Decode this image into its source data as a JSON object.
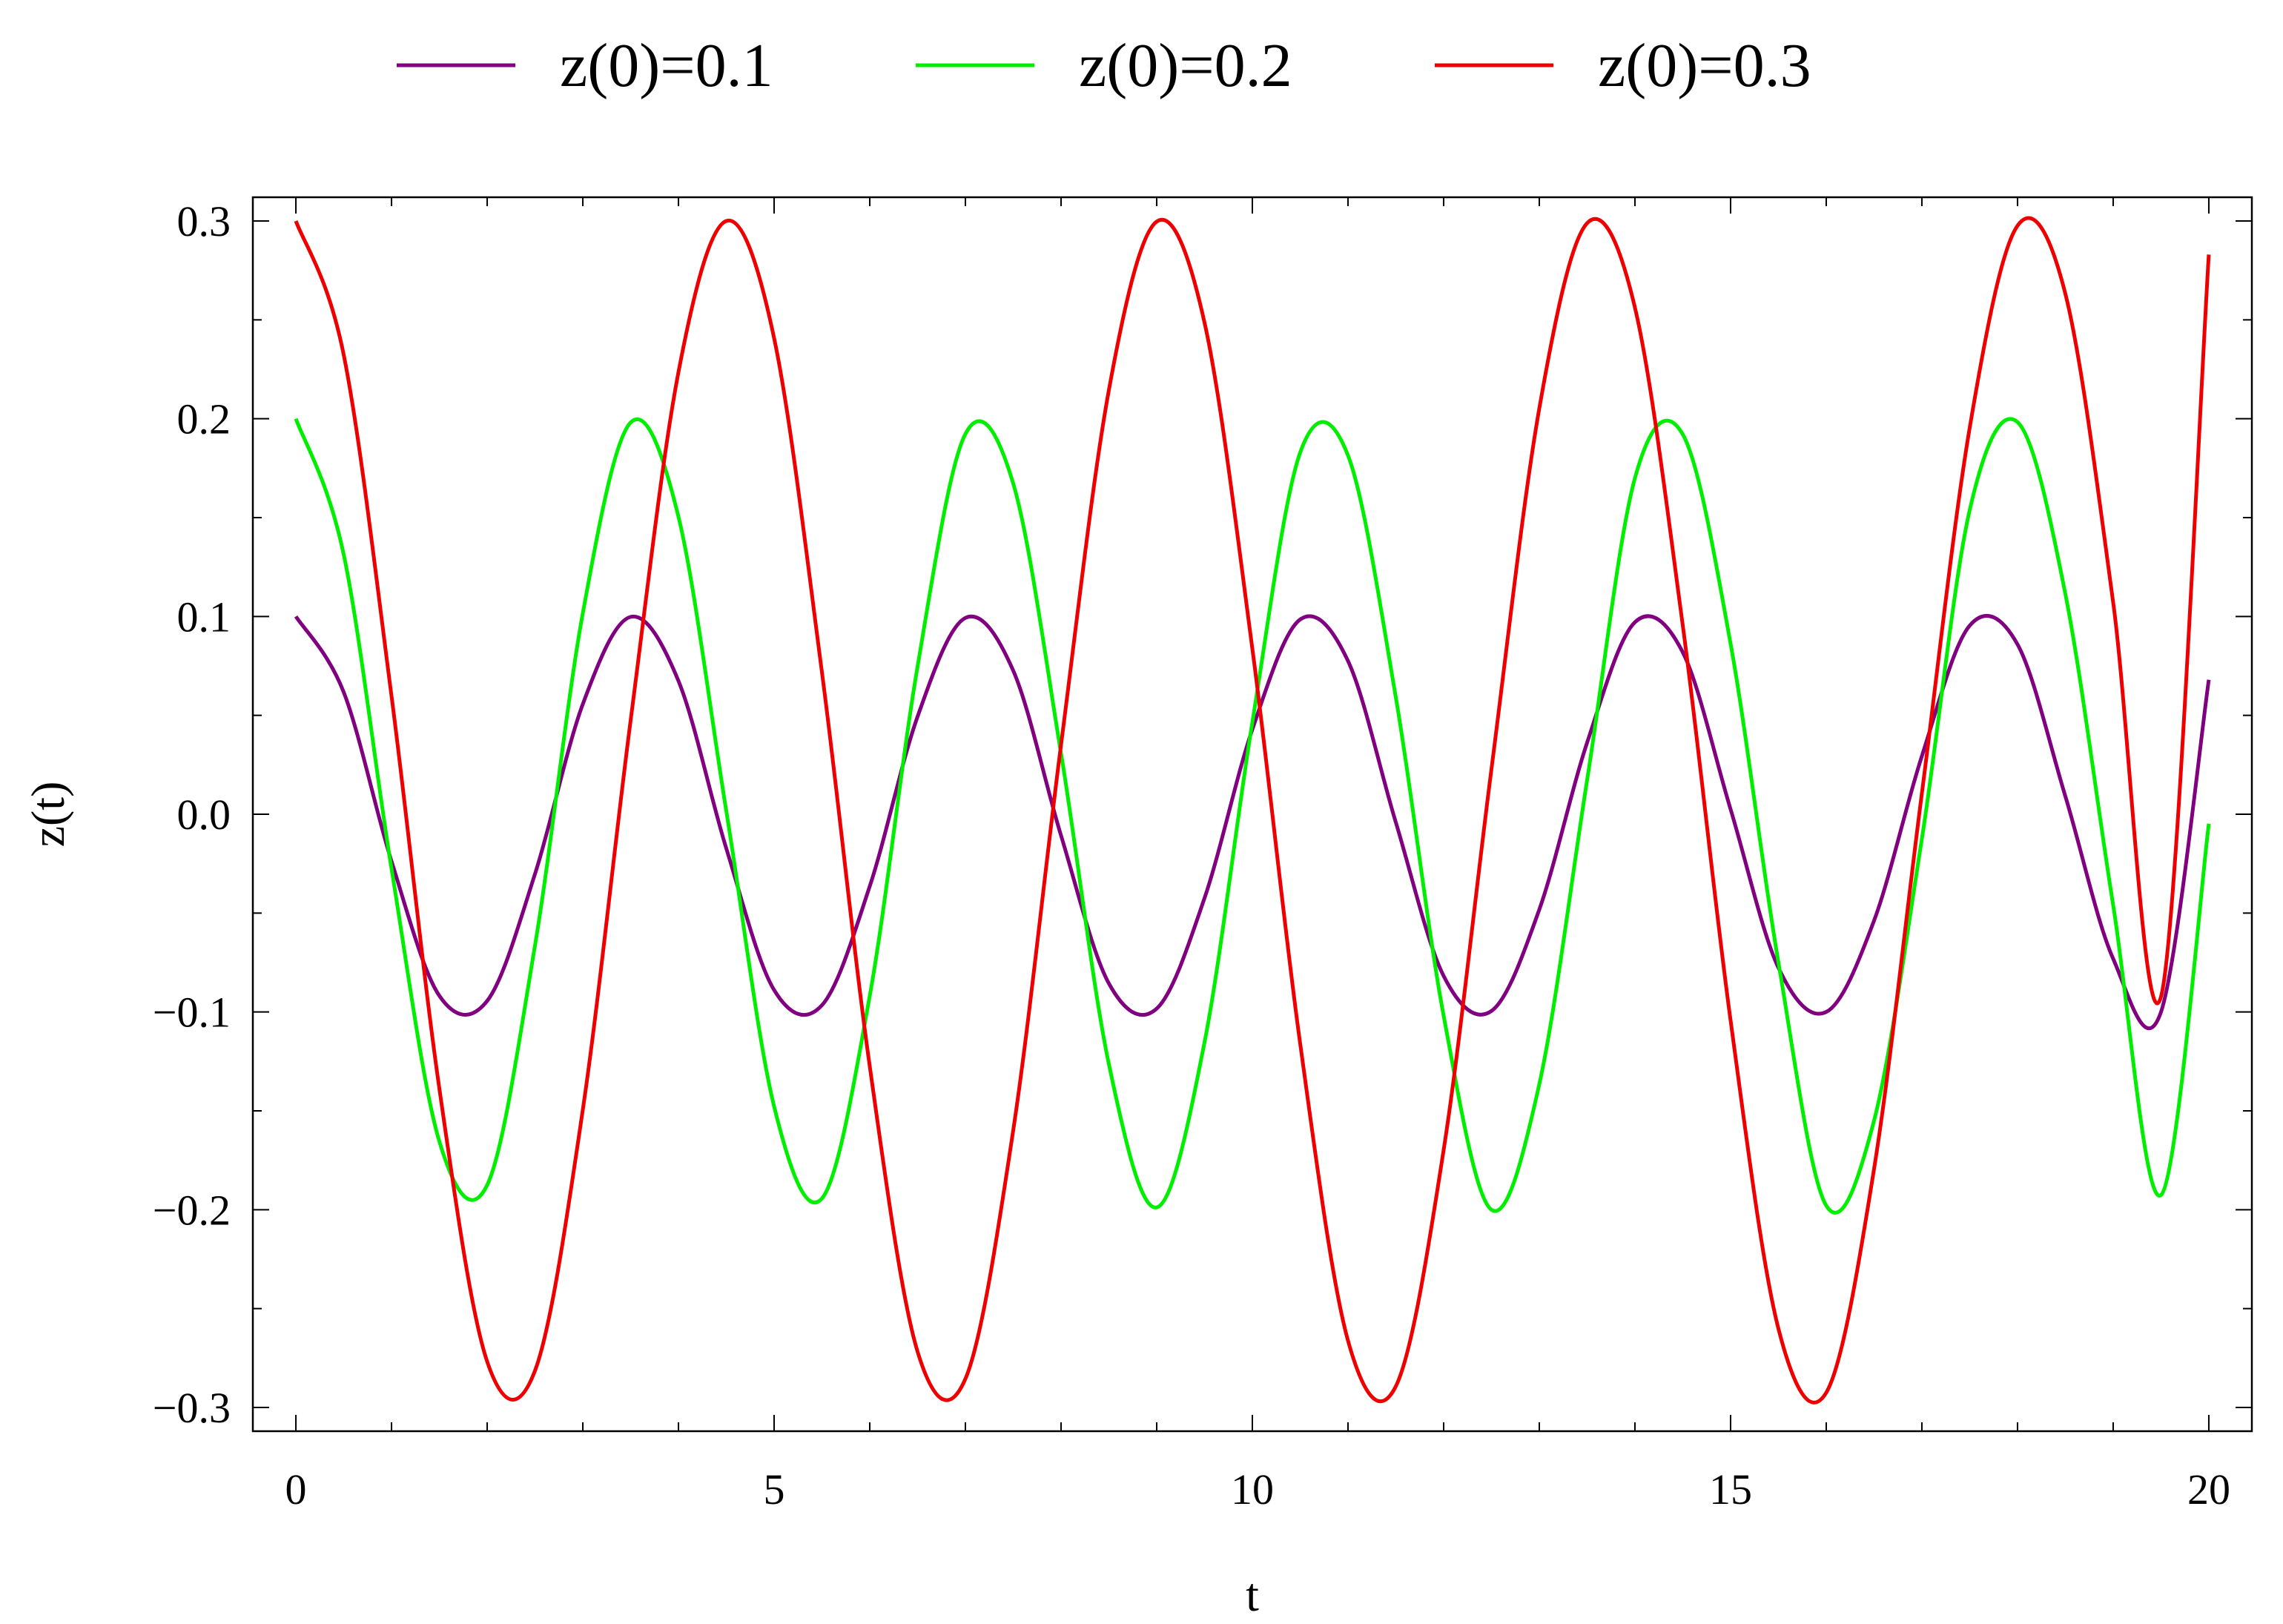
{
  "chart_data": {
    "type": "line",
    "title": "",
    "xlabel": "t",
    "ylabel": "z(t)",
    "xlim": [
      -0.45,
      20.45
    ],
    "ylim": [
      -0.312,
      0.312
    ],
    "x_ticks": [
      0,
      5,
      10,
      15,
      20
    ],
    "x_tick_labels": [
      "0",
      "5",
      "10",
      "15",
      "20"
    ],
    "y_ticks": [
      0.3,
      0.2,
      0.1,
      0.0,
      -0.1,
      -0.2,
      -0.3
    ],
    "y_tick_labels": [
      "0.3",
      "0.2",
      "0.1",
      "0.0",
      "−0.1",
      "−0.2",
      "−0.3"
    ],
    "grid": false,
    "legend_position": "top-center",
    "x_sampling": {
      "start": 0,
      "end": 20,
      "step": 0.5
    },
    "series": [
      {
        "name": "z(0)=0.1",
        "color": "#800080",
        "values": [
          0.1,
          0.0617,
          -0.0238,
          -0.0918,
          -0.0944,
          -0.0302,
          0.0557,
          0.0998,
          0.0674,
          -0.0173,
          -0.0889,
          -0.0966,
          -0.0364,
          0.0494,
          0.0993,
          0.0726,
          -0.0108,
          -0.0856,
          -0.0983,
          -0.0424,
          0.0429,
          0.0985,
          0.0775,
          -0.0041,
          -0.0818,
          -0.0995,
          -0.0482,
          0.0362,
          0.0971,
          0.0819,
          0.0025,
          -0.0776,
          -0.1,
          -0.0538,
          0.0294,
          0.0954,
          0.0859,
          0.0091,
          -0.0731,
          -0.1,
          0.068
        ]
      },
      {
        "name": "z(0)=0.2",
        "color": "#00ee00",
        "values": [
          0.2,
          0.1313,
          -0.0276,
          -0.1655,
          -0.1875,
          -0.0663,
          0.1017,
          0.1981,
          0.1504,
          0.0016,
          -0.1478,
          -0.1943,
          -0.0918,
          0.0748,
          0.1923,
          0.1672,
          0.0307,
          -0.1264,
          -0.1988,
          -0.1153,
          0.0465,
          0.1829,
          0.1814,
          0.0591,
          -0.1019,
          -0.2,
          -0.1365,
          0.0173,
          0.17,
          0.1921,
          0.0862,
          -0.0749,
          -0.1979,
          -0.1549,
          -0.0124,
          0.1538,
          0.1983,
          0.1114,
          -0.046,
          -0.1926,
          -0.0048
        ]
      },
      {
        "name": "z(0)=0.3",
        "color": "#ee0000",
        "values": [
          0.3,
          0.2323,
          0.0597,
          -0.1387,
          -0.2768,
          -0.2814,
          -0.1494,
          0.0475,
          0.2236,
          0.3,
          0.2407,
          0.0718,
          -0.1275,
          -0.2718,
          -0.2855,
          -0.1598,
          0.0352,
          0.2145,
          0.2997,
          0.2486,
          0.0837,
          -0.116,
          -0.2662,
          -0.2893,
          -0.1698,
          0.0229,
          0.2052,
          0.2989,
          0.2562,
          0.0955,
          -0.1043,
          -0.2601,
          -0.2925,
          -0.1794,
          0.0106,
          0.1954,
          0.2976,
          0.2632,
          0.1071,
          -0.0923,
          0.283
        ]
      }
    ]
  }
}
